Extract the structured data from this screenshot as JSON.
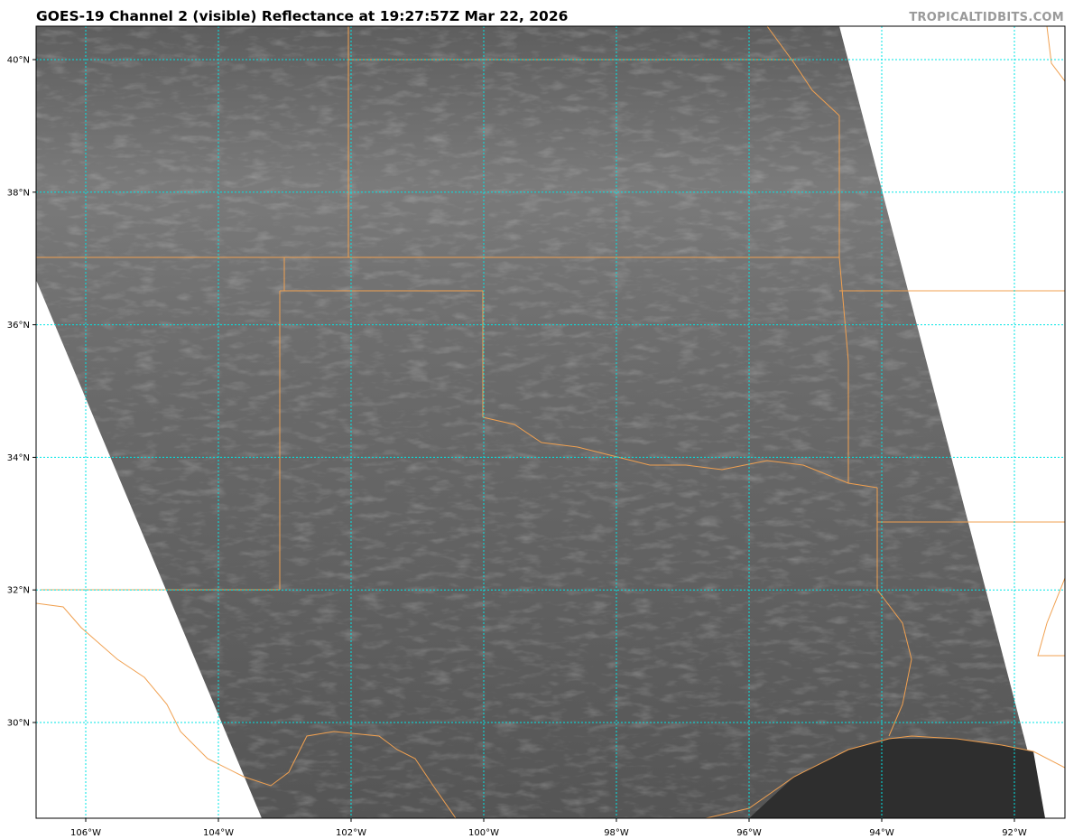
{
  "header": {
    "title": "GOES-19 Channel 2 (visible) Reflectance at 19:27:57Z Mar 22, 2026",
    "credit": "TROPICALTIDBITS.COM"
  },
  "map": {
    "projection": "lat-lon",
    "imagery": "visible satellite reflectance (grayscale)",
    "extent": {
      "lon": [
        -106.75,
        -91.25
      ],
      "lat": [
        28.6,
        40.5
      ]
    },
    "colors": {
      "grid": "#00e5e5",
      "borders": "#f0a050",
      "background": "#ffffff"
    },
    "lat_ticks": [
      {
        "value": 40,
        "label": "40°N"
      },
      {
        "value": 38,
        "label": "38°N"
      },
      {
        "value": 36,
        "label": "36°N"
      },
      {
        "value": 34,
        "label": "34°N"
      },
      {
        "value": 32,
        "label": "32°N"
      },
      {
        "value": 30,
        "label": "30°N"
      }
    ],
    "lon_ticks": [
      {
        "value": -106,
        "label": "106°W"
      },
      {
        "value": -104,
        "label": "104°W"
      },
      {
        "value": -102,
        "label": "102°W"
      },
      {
        "value": -100,
        "label": "100°W"
      },
      {
        "value": -98,
        "label": "98°W"
      },
      {
        "value": -96,
        "label": "96°W"
      },
      {
        "value": -94,
        "label": "94°W"
      },
      {
        "value": -92,
        "label": "92°W"
      }
    ]
  }
}
